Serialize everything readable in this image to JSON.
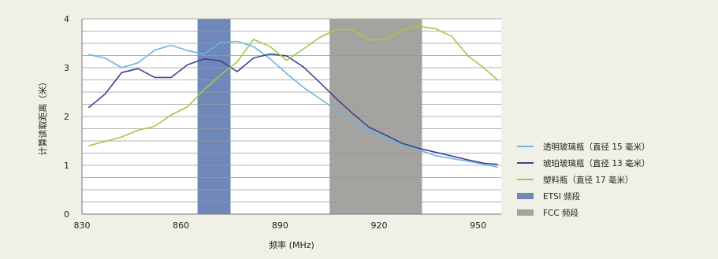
{
  "chart_data": {
    "type": "line",
    "xlabel": "频率 (MHz)",
    "ylabel": "计算读取距离（米）",
    "xlim": [
      830,
      957
    ],
    "ylim": [
      0,
      4
    ],
    "x_ticks": [
      830,
      860,
      890,
      920,
      950
    ],
    "y_ticks": [
      0,
      1,
      2,
      3,
      4
    ],
    "grid": "horizontal",
    "legend_position": "right",
    "bands": [
      {
        "name": "ETSI 频段",
        "x_range": [
          865,
          875
        ],
        "color": "#6f87b9"
      },
      {
        "name": "FCC 频段",
        "x_range": [
          905,
          933
        ],
        "color": "#a4a39f"
      }
    ],
    "series": [
      {
        "name": "透明玻璃瓶（直径 15 毫米）",
        "color": "#6cb4e3",
        "x": [
          832,
          837,
          842,
          847,
          852,
          857,
          862,
          867,
          872,
          877,
          882,
          887,
          892,
          897,
          902,
          907,
          912,
          917,
          922,
          927,
          932,
          937,
          942,
          947,
          952,
          956
        ],
        "y": [
          3.27,
          3.2,
          3.0,
          3.1,
          3.36,
          3.46,
          3.35,
          3.28,
          3.52,
          3.54,
          3.43,
          3.18,
          2.88,
          2.6,
          2.37,
          2.13,
          1.9,
          1.7,
          1.55,
          1.43,
          1.32,
          1.2,
          1.14,
          1.08,
          1.02,
          0.96
        ]
      },
      {
        "name": "琥珀玻璃瓶（直径 13 毫米）",
        "color": "#3e4390",
        "x": [
          832,
          837,
          842,
          847,
          852,
          857,
          862,
          867,
          872,
          877,
          882,
          887,
          892,
          897,
          902,
          907,
          912,
          917,
          922,
          927,
          932,
          937,
          942,
          947,
          952,
          956
        ],
        "y": [
          2.18,
          2.46,
          2.9,
          2.98,
          2.8,
          2.8,
          3.06,
          3.18,
          3.14,
          2.92,
          3.2,
          3.28,
          3.24,
          3.02,
          2.7,
          2.37,
          2.06,
          1.78,
          1.62,
          1.45,
          1.35,
          1.27,
          1.19,
          1.11,
          1.04,
          1.02
        ]
      },
      {
        "name": "塑料瓶（直径 17 毫米）",
        "color": "#9fcb43",
        "x": [
          832,
          837,
          842,
          847,
          852,
          857,
          862,
          867,
          872,
          877,
          882,
          887,
          892,
          897,
          902,
          907,
          912,
          917,
          922,
          927,
          932,
          937,
          942,
          947,
          952,
          956
        ],
        "y": [
          1.4,
          1.49,
          1.58,
          1.72,
          1.8,
          2.03,
          2.2,
          2.55,
          2.85,
          3.12,
          3.58,
          3.43,
          3.15,
          3.38,
          3.62,
          3.78,
          3.78,
          3.57,
          3.58,
          3.77,
          3.85,
          3.8,
          3.64,
          3.24,
          2.98,
          2.74
        ]
      }
    ]
  }
}
